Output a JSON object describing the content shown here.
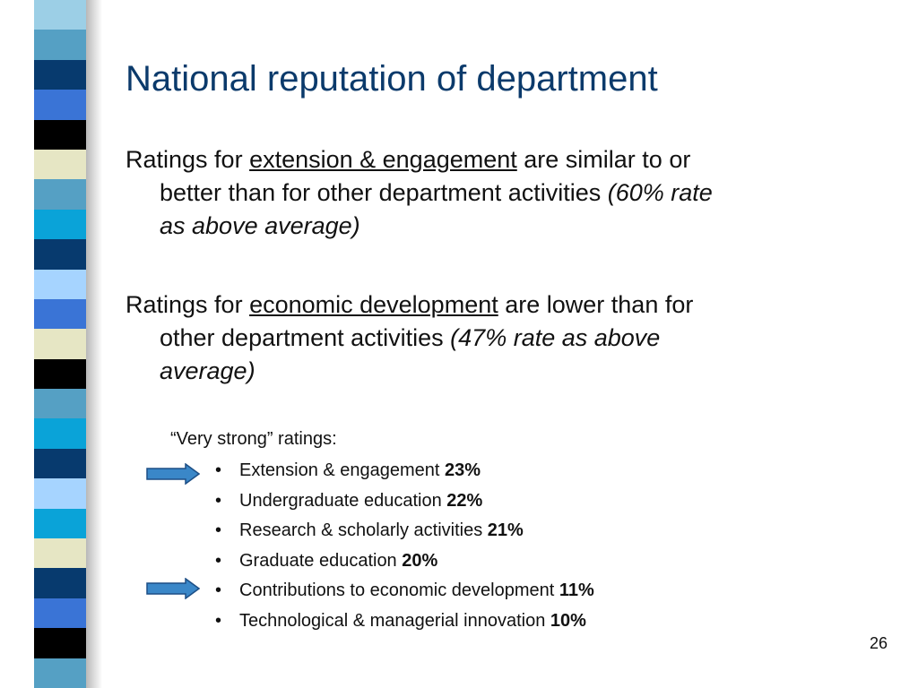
{
  "title": "National reputation of department",
  "paragraphs": [
    {
      "lead": "Ratings for ",
      "topic": "extension & engagement",
      "line1_rest": " are similar to or",
      "line2": "better than for other department activities ",
      "note_a": "(60% rate",
      "note_b": "as above average)"
    },
    {
      "lead": "Ratings for ",
      "topic": "economic development",
      "line1_rest": " are lower than for",
      "line2": "other department activities ",
      "note_a": "(47% rate as above",
      "note_b": "average)"
    }
  ],
  "very_strong": {
    "heading": "“Very strong” ratings:",
    "items": [
      {
        "label": "Extension & engagement  ",
        "pct": "23%",
        "highlighted": true
      },
      {
        "label": "Undergraduate education ",
        "pct": "22%",
        "highlighted": false
      },
      {
        "label": "Research & scholarly activities ",
        "pct": "21%",
        "highlighted": false
      },
      {
        "label": "Graduate education ",
        "pct": "20%",
        "highlighted": false
      },
      {
        "label": "Contributions to economic development ",
        "pct": "11%",
        "highlighted": true
      },
      {
        "label": "Technological & managerial innovation ",
        "pct": "10%",
        "highlighted": false
      }
    ]
  },
  "bullet": "•",
  "page_number": "26",
  "colors": {
    "title": "#0b3a6b",
    "arrow_fill": "#3a87c8",
    "arrow_stroke": "#1d4f86",
    "stripe": [
      "#9ccfe6",
      "#55a0c4",
      "#073a6e",
      "#3a74d6",
      "#000000",
      "#e6e6c4",
      "#55a0c4",
      "#0aa3d8",
      "#073a6e",
      "#a6d4ff",
      "#3a74d6",
      "#e6e6c4",
      "#000000",
      "#55a0c4",
      "#0aa3d8",
      "#073a6e",
      "#a6d4ff",
      "#0aa3d8",
      "#e6e6c4",
      "#073a6e",
      "#3a74d6",
      "#000000",
      "#55a0c4"
    ]
  },
  "icons": {
    "arrow": "right-arrow-icon"
  }
}
